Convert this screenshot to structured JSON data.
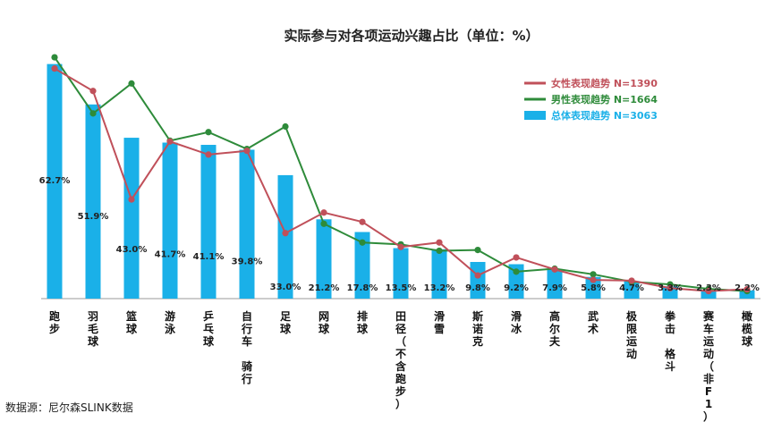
{
  "chart_data": {
    "type": "bar",
    "title": "实际参与对各项运动兴趣占比（单位：%）",
    "categories": [
      "跑步",
      "羽毛球",
      "篮球",
      "游泳",
      "乒乓球",
      "自行车 骑行",
      "足球",
      "网球",
      "排球",
      "田径（不含跑步）",
      "滑雪",
      "斯诺克",
      "滑冰",
      "高尔夫",
      "武术",
      "极限运动",
      "拳击 格斗",
      "赛车运动（非F1）",
      "橄榄球"
    ],
    "series": [
      {
        "name": "总体表现趋势",
        "n_label": "N=3063",
        "chart": "bar",
        "color": "#1ab0e8",
        "values": [
          62.7,
          51.9,
          43.0,
          41.7,
          41.1,
          39.8,
          33.0,
          21.2,
          17.8,
          13.5,
          13.2,
          9.8,
          9.2,
          7.9,
          5.8,
          4.7,
          3.3,
          2.3,
          2.2
        ]
      },
      {
        "name": "女性表现趋势",
        "n_label": "N=1390",
        "chart": "line",
        "color": "#c0505a",
        "values": [
          61.5,
          55.5,
          26.5,
          42.0,
          38.5,
          39.5,
          17.5,
          23.0,
          20.5,
          13.8,
          15.0,
          6.2,
          11.0,
          7.8,
          5.0,
          4.8,
          2.8,
          2.0,
          2.5
        ]
      },
      {
        "name": "男性表现趋势",
        "n_label": "N=1664",
        "chart": "line",
        "color": "#2e8b3a",
        "values": [
          64.5,
          49.5,
          57.5,
          42.2,
          44.5,
          40.0,
          46.0,
          20.0,
          15.0,
          14.5,
          12.8,
          13.0,
          7.2,
          8.0,
          6.5,
          4.5,
          3.8,
          2.6,
          2.0
        ]
      }
    ],
    "ylim": [
      0,
      65
    ],
    "legend": "top-right",
    "grid": false
  },
  "source": "数据源：尼尔森SLINK数据"
}
